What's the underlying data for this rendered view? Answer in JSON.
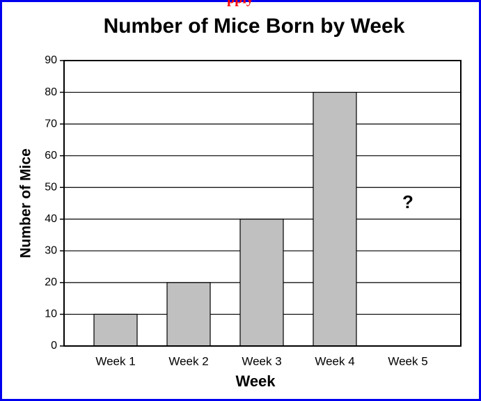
{
  "header_text": "pply",
  "chart_data": {
    "type": "bar",
    "title": "Number of Mice Born by Week",
    "x_label": "Week",
    "y_label": "Number of Mice",
    "categories": [
      "Week 1",
      "Week 2",
      "Week 3",
      "Week 4",
      "Week 5"
    ],
    "values": [
      10,
      20,
      40,
      80,
      null
    ],
    "color": "#c0c0c0",
    "annotation": "?",
    "ylim": [
      0,
      90
    ],
    "yticks": [
      0,
      10,
      20,
      30,
      40,
      50,
      60,
      70,
      80,
      90
    ],
    "grid": true
  }
}
